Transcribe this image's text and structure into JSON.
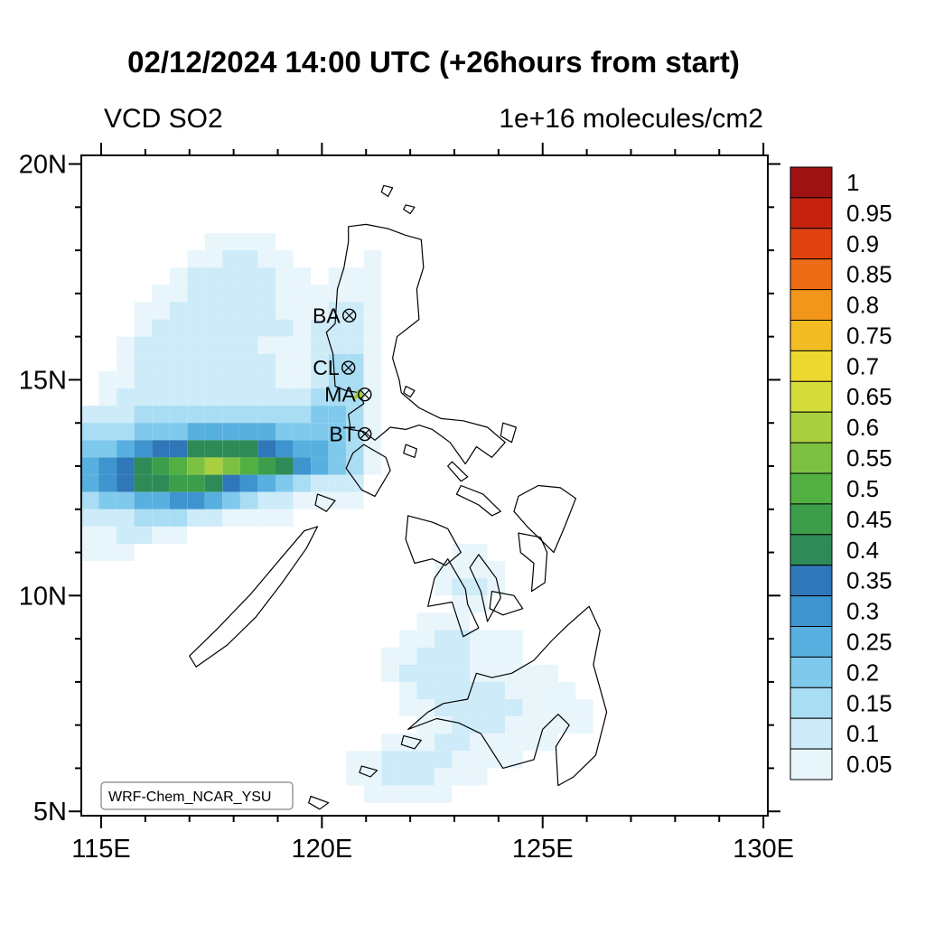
{
  "chart_data": {
    "type": "heatmap",
    "title": "02/12/2024 14:00 UTC (+26hours from start)",
    "variable": "VCD SO2",
    "units_label": "1e+16 molecules/cm2",
    "watermark": "WRF-Chem_NCAR_YSU",
    "x_axis": {
      "lim": [
        114.55,
        130.1
      ],
      "ticks": [
        115,
        120,
        125,
        130
      ],
      "tick_labels": [
        "115E",
        "120E",
        "125E",
        "130E"
      ],
      "minor_step": 1
    },
    "y_axis": {
      "lim": [
        4.9,
        20.2
      ],
      "ticks": [
        5,
        10,
        15,
        20
      ],
      "tick_labels": [
        "5N",
        "10N",
        "15N",
        "20N"
      ],
      "minor_step": 1
    },
    "colorbar": {
      "levels": [
        0.05,
        0.1,
        0.15,
        0.2,
        0.25,
        0.3,
        0.35,
        0.4,
        0.45,
        0.5,
        0.55,
        0.6,
        0.65,
        0.7,
        0.75,
        0.8,
        0.85,
        0.9,
        0.95,
        1
      ],
      "labels": [
        "0.05",
        "0.1",
        "0.15",
        "0.2",
        "0.25",
        "0.3",
        "0.35",
        "0.4",
        "0.45",
        "0.5",
        "0.55",
        "0.6",
        "0.65",
        "0.7",
        "0.75",
        "0.8",
        "0.85",
        "0.9",
        "0.95",
        "1"
      ],
      "colors": [
        "#E8F6FC",
        "#CDEBF8",
        "#A9DDF3",
        "#7FC9EC",
        "#57B0DF",
        "#3D94CE",
        "#2F77B8",
        "#2E8B57",
        "#3C9E4A",
        "#52B043",
        "#7DC143",
        "#A9CF3E",
        "#D3DC3A",
        "#EDD82F",
        "#F2BC24",
        "#F1951B",
        "#EC6B15",
        "#E04310",
        "#C6230F",
        "#9E1212"
      ]
    },
    "stations": [
      {
        "id": "BA",
        "lon": 120.62,
        "lat": 16.49
      },
      {
        "id": "CL",
        "lon": 120.6,
        "lat": 15.28
      },
      {
        "id": "MA",
        "lon": 120.97,
        "lat": 14.66
      },
      {
        "id": "BT",
        "lon": 120.97,
        "lat": 13.74
      }
    ],
    "volcano_marker": {
      "lon": 120.85,
      "lat": 14.62,
      "color": "#A9C83B"
    },
    "grid": {
      "lon0": 114.55,
      "lat_top": 20.4,
      "dlon": 0.4,
      "dlat": 0.4,
      "value_encoding": "char a..t = value (index+1)*0.05 of 1e+16 molecules/cm2; runs = [row_j_from_north, start_col_i, level_chars]",
      "runs": [
        [
          5,
          7,
          "aaaa"
        ],
        [
          6,
          6,
          "aabbaa"
        ],
        [
          6,
          16,
          "a"
        ],
        [
          7,
          5,
          "abbbbbaa"
        ],
        [
          7,
          14,
          "aaa"
        ],
        [
          8,
          4,
          "aabbbbbaa"
        ],
        [
          8,
          13,
          "aaaa"
        ],
        [
          9,
          3,
          "aabbbbbbaa"
        ],
        [
          9,
          13,
          "abba"
        ],
        [
          10,
          3,
          "abbbbbbbba"
        ],
        [
          10,
          13,
          "bbba"
        ],
        [
          11,
          2,
          "abbbbbbbaaabbba"
        ],
        [
          12,
          2,
          "abbbbbbbbaabcca"
        ],
        [
          13,
          1,
          "aabbbbbbbbaabcca"
        ],
        [
          14,
          1,
          "abbbbbbbbbbbccca"
        ],
        [
          15,
          0,
          "bbbccccccccccddca"
        ],
        [
          16,
          0,
          "cccdddeeeeeddddca"
        ],
        [
          17,
          0,
          "ddefgghhhhgfeedca"
        ],
        [
          18,
          0,
          "efghijklkjihfedca"
        ],
        [
          19,
          0,
          "efghhiihgfedcbbb"
        ],
        [
          20,
          0,
          "cddeeffedcbbaaaa"
        ],
        [
          21,
          0,
          "bbbcccbbaaaa"
        ],
        [
          22,
          0,
          "aabbaa"
        ],
        [
          23,
          0,
          "aaa"
        ],
        [
          23,
          21,
          "aa"
        ],
        [
          24,
          20,
          "aaaa"
        ],
        [
          25,
          20,
          "abba"
        ],
        [
          26,
          21,
          "aa"
        ],
        [
          27,
          19,
          "aaa"
        ],
        [
          28,
          18,
          "aabbaaa"
        ],
        [
          29,
          17,
          "aabbbaaa"
        ],
        [
          30,
          17,
          "abbbbaaaaa"
        ],
        [
          31,
          18,
          "abbbbbaaaa"
        ],
        [
          32,
          18,
          "aabbbbbaaaa"
        ],
        [
          33,
          19,
          "aabbbaaaaa"
        ],
        [
          34,
          17,
          "aaabbaaaaa"
        ],
        [
          35,
          15,
          "aabbbbaaaa"
        ],
        [
          36,
          15,
          "aabbbaaa"
        ],
        [
          37,
          16,
          "aaaaa"
        ]
      ]
    },
    "coastline": [
      [
        [
          120.6,
          18.55
        ],
        [
          121.0,
          18.6
        ],
        [
          121.5,
          18.5
        ],
        [
          121.9,
          18.35
        ],
        [
          122.25,
          18.25
        ],
        [
          122.3,
          17.6
        ],
        [
          122.15,
          17.1
        ],
        [
          122.2,
          16.4
        ],
        [
          121.7,
          16.0
        ],
        [
          121.6,
          15.5
        ],
        [
          121.75,
          15.0
        ],
        [
          121.8,
          14.7
        ],
        [
          122.2,
          14.35
        ],
        [
          122.7,
          14.1
        ],
        [
          123.2,
          14.05
        ],
        [
          123.75,
          13.9
        ],
        [
          124.15,
          13.55
        ],
        [
          123.85,
          13.2
        ],
        [
          123.5,
          13.45
        ],
        [
          123.25,
          13.05
        ],
        [
          122.9,
          13.55
        ],
        [
          122.5,
          13.85
        ],
        [
          122.2,
          13.95
        ],
        [
          121.9,
          13.85
        ],
        [
          121.55,
          13.9
        ],
        [
          121.2,
          13.6
        ],
        [
          120.95,
          13.8
        ],
        [
          120.65,
          13.85
        ],
        [
          120.6,
          14.2
        ],
        [
          120.95,
          14.45
        ],
        [
          120.85,
          14.7
        ],
        [
          120.55,
          14.75
        ],
        [
          120.3,
          14.85
        ],
        [
          120.25,
          15.6
        ],
        [
          120.1,
          16.1
        ],
        [
          120.3,
          16.3
        ],
        [
          120.35,
          17.1
        ],
        [
          120.5,
          17.6
        ],
        [
          120.6,
          18.2
        ]
      ],
      [
        [
          120.95,
          13.5
        ],
        [
          121.45,
          13.2
        ],
        [
          121.55,
          12.9
        ],
        [
          121.2,
          12.3
        ],
        [
          120.9,
          12.45
        ],
        [
          120.55,
          12.95
        ],
        [
          120.7,
          13.3
        ]
      ],
      [
        [
          121.9,
          13.5
        ],
        [
          122.15,
          13.4
        ],
        [
          122.1,
          13.2
        ],
        [
          121.85,
          13.3
        ]
      ],
      [
        [
          124.1,
          14.0
        ],
        [
          124.4,
          13.9
        ],
        [
          124.3,
          13.55
        ],
        [
          124.05,
          13.7
        ]
      ],
      [
        [
          122.95,
          13.1
        ],
        [
          123.3,
          12.75
        ],
        [
          123.15,
          12.65
        ],
        [
          122.85,
          13.0
        ]
      ],
      [
        [
          123.15,
          12.55
        ],
        [
          123.65,
          12.35
        ],
        [
          124.05,
          11.95
        ],
        [
          123.85,
          11.85
        ],
        [
          123.55,
          12.1
        ],
        [
          123.25,
          12.25
        ],
        [
          123.05,
          12.35
        ]
      ],
      [
        [
          121.95,
          11.85
        ],
        [
          122.5,
          11.7
        ],
        [
          122.85,
          11.55
        ],
        [
          123.15,
          11.0
        ],
        [
          122.8,
          10.7
        ],
        [
          122.5,
          10.85
        ],
        [
          122.1,
          10.75
        ],
        [
          121.9,
          11.3
        ]
      ],
      [
        [
          122.85,
          10.85
        ],
        [
          123.25,
          10.15
        ],
        [
          123.3,
          9.8
        ],
        [
          123.55,
          9.25
        ],
        [
          123.2,
          9.05
        ],
        [
          122.95,
          9.85
        ],
        [
          122.4,
          9.75
        ],
        [
          122.55,
          10.4
        ]
      ],
      [
        [
          123.55,
          10.95
        ],
        [
          123.95,
          10.4
        ],
        [
          124.05,
          9.95
        ],
        [
          123.75,
          9.4
        ],
        [
          123.6,
          10.1
        ],
        [
          123.35,
          10.65
        ]
      ],
      [
        [
          123.85,
          10.1
        ],
        [
          124.35,
          10.0
        ],
        [
          124.55,
          9.7
        ],
        [
          124.1,
          9.55
        ],
        [
          123.8,
          9.7
        ]
      ],
      [
        [
          124.45,
          11.45
        ],
        [
          124.95,
          11.35
        ],
        [
          125.1,
          11.0
        ],
        [
          125.05,
          10.3
        ],
        [
          124.75,
          10.1
        ],
        [
          124.8,
          10.75
        ],
        [
          124.5,
          11.0
        ]
      ],
      [
        [
          124.45,
          12.3
        ],
        [
          124.9,
          12.55
        ],
        [
          125.4,
          12.5
        ],
        [
          125.75,
          12.25
        ],
        [
          125.5,
          11.6
        ],
        [
          125.25,
          11.0
        ],
        [
          124.95,
          11.3
        ],
        [
          124.65,
          11.6
        ],
        [
          124.35,
          11.95
        ]
      ],
      [
        [
          117.15,
          8.35
        ],
        [
          117.85,
          8.85
        ],
        [
          118.5,
          9.5
        ],
        [
          119.1,
          10.3
        ],
        [
          119.65,
          11.1
        ],
        [
          119.9,
          11.6
        ],
        [
          119.6,
          11.5
        ],
        [
          119.1,
          10.9
        ],
        [
          118.4,
          10.05
        ],
        [
          117.65,
          9.25
        ],
        [
          117.0,
          8.6
        ]
      ],
      [
        [
          119.9,
          12.35
        ],
        [
          120.3,
          12.2
        ],
        [
          120.1,
          11.95
        ],
        [
          119.85,
          12.1
        ]
      ],
      [
        [
          121.95,
          6.9
        ],
        [
          122.4,
          7.3
        ],
        [
          122.75,
          7.5
        ],
        [
          123.3,
          7.6
        ],
        [
          123.5,
          8.2
        ],
        [
          123.85,
          8.1
        ],
        [
          124.3,
          8.2
        ],
        [
          124.8,
          8.5
        ],
        [
          125.2,
          8.95
        ],
        [
          125.55,
          9.3
        ],
        [
          126.05,
          9.75
        ],
        [
          126.3,
          9.2
        ],
        [
          126.15,
          8.4
        ],
        [
          126.45,
          7.3
        ],
        [
          126.2,
          6.3
        ],
        [
          125.7,
          5.8
        ],
        [
          125.35,
          5.6
        ],
        [
          125.3,
          6.5
        ],
        [
          125.6,
          7.0
        ],
        [
          125.35,
          7.25
        ],
        [
          125.0,
          6.9
        ],
        [
          124.8,
          6.2
        ],
        [
          124.1,
          6.0
        ],
        [
          123.6,
          6.8
        ],
        [
          123.1,
          7.05
        ],
        [
          122.6,
          7.15
        ]
      ],
      [
        [
          121.85,
          6.75
        ],
        [
          122.25,
          6.65
        ],
        [
          122.1,
          6.45
        ],
        [
          121.8,
          6.55
        ]
      ],
      [
        [
          120.9,
          6.05
        ],
        [
          121.25,
          5.95
        ],
        [
          121.1,
          5.8
        ],
        [
          120.85,
          5.9
        ]
      ],
      [
        [
          119.75,
          5.35
        ],
        [
          120.15,
          5.2
        ],
        [
          119.95,
          5.05
        ],
        [
          119.7,
          5.2
        ]
      ],
      [
        [
          121.4,
          19.5
        ],
        [
          121.6,
          19.45
        ],
        [
          121.5,
          19.25
        ],
        [
          121.35,
          19.35
        ]
      ],
      [
        [
          121.9,
          19.05
        ],
        [
          122.1,
          19.0
        ],
        [
          122.0,
          18.85
        ],
        [
          121.85,
          18.95
        ]
      ],
      [
        [
          121.9,
          14.85
        ],
        [
          122.1,
          14.75
        ],
        [
          122.0,
          14.6
        ],
        [
          121.85,
          14.7
        ]
      ]
    ]
  }
}
